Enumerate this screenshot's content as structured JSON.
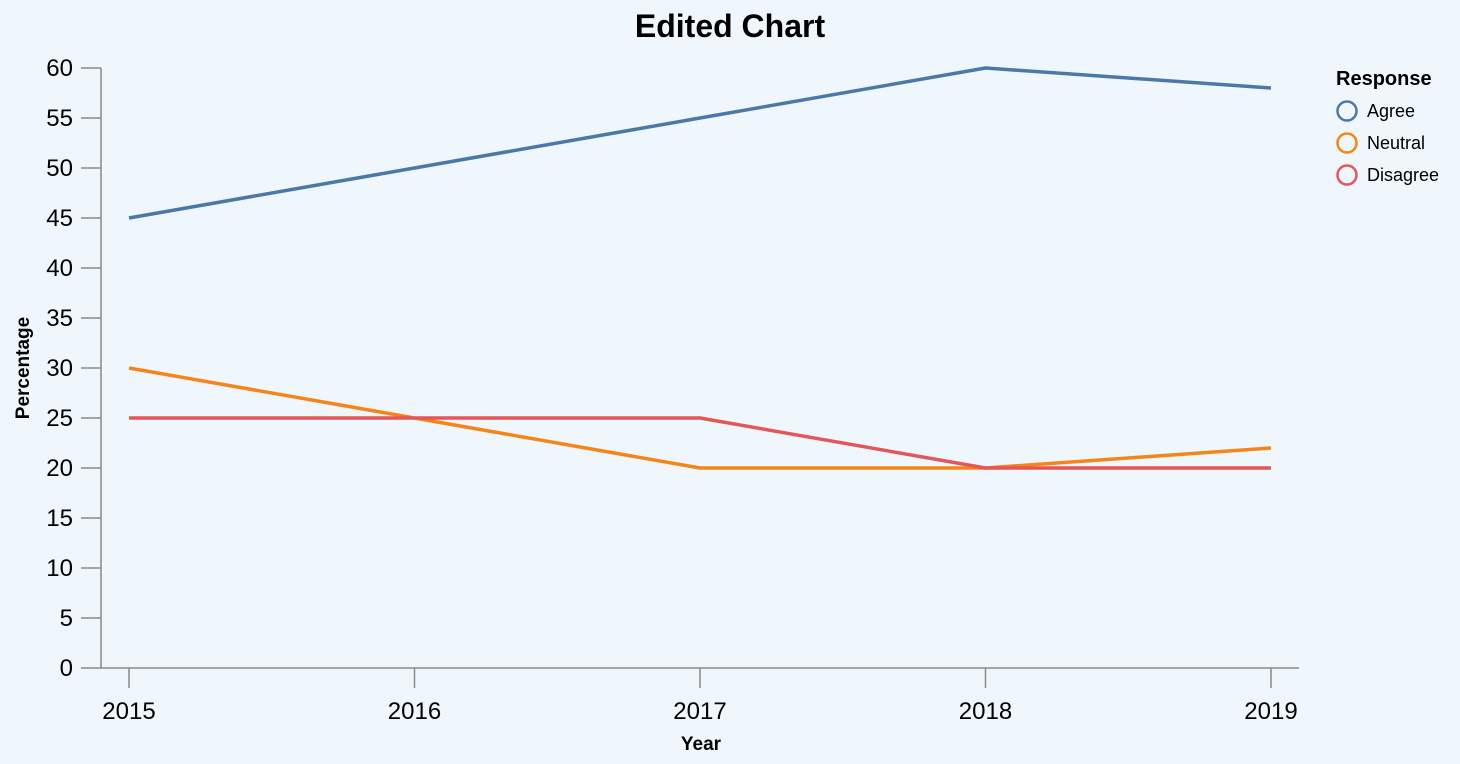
{
  "chart_data": {
    "type": "line",
    "title": "Edited Chart",
    "xlabel": "Year",
    "ylabel": "Percentage",
    "x": [
      "2015",
      "2016",
      "2017",
      "2018",
      "2019"
    ],
    "ylim": [
      0,
      60
    ],
    "yticks": [
      0,
      5,
      10,
      15,
      20,
      25,
      30,
      35,
      40,
      45,
      50,
      55,
      60
    ],
    "grid": false,
    "legend": {
      "title": "Response",
      "placement": "right"
    },
    "series": [
      {
        "name": "Agree",
        "color": "#4c78a8",
        "values": [
          45,
          50,
          55,
          60,
          58
        ]
      },
      {
        "name": "Neutral",
        "color": "#f58518",
        "values": [
          30,
          25,
          20,
          20,
          22
        ]
      },
      {
        "name": "Disagree",
        "color": "#e45756",
        "values": [
          25,
          25,
          25,
          20,
          20
        ]
      }
    ]
  }
}
